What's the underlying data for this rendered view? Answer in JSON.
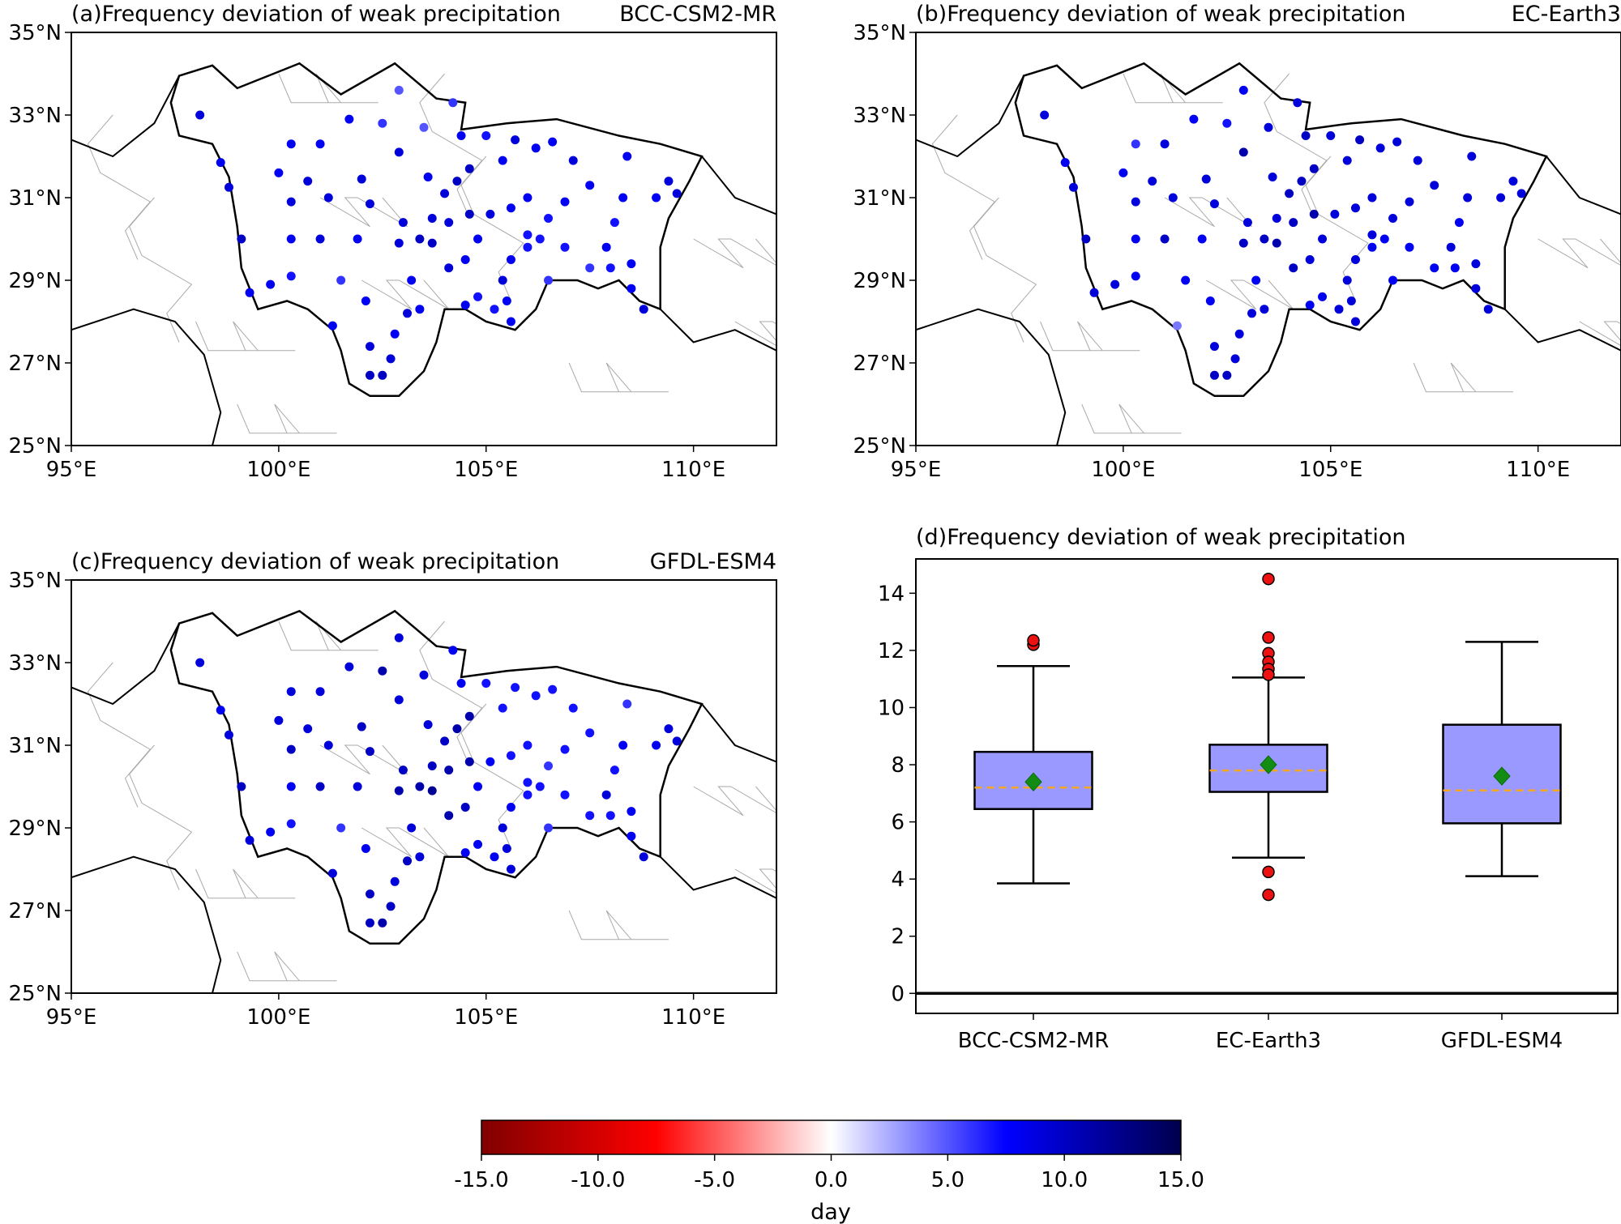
{
  "panels": [
    {
      "title": "(a)Frequency deviation of weak precipitation",
      "model": "BCC-CSM2-MR",
      "values_key": 0
    },
    {
      "title": "(b)Frequency deviation of weak precipitation",
      "model": "EC-Earth3",
      "values_key": 1
    },
    {
      "title": "(c)Frequency deviation of weak precipitation",
      "model": "GFDL-ESM4",
      "values_key": 2
    }
  ],
  "map_axes": {
    "lon_range": [
      95,
      112
    ],
    "lat_range": [
      25,
      35
    ],
    "lon_ticks": [
      95,
      100,
      105,
      110
    ],
    "lon_labels": [
      "95°E",
      "100°E",
      "105°E",
      "110°E"
    ],
    "lat_ticks": [
      25,
      27,
      29,
      31,
      33,
      35
    ],
    "lat_labels": [
      "25°N",
      "27°N",
      "29°N",
      "31°N",
      "33°N",
      "35°N"
    ]
  },
  "region_outline": [
    [
      97.6,
      33.95
    ],
    [
      98.4,
      34.2
    ],
    [
      99.0,
      33.65
    ],
    [
      100.5,
      34.25
    ],
    [
      101.5,
      33.5
    ],
    [
      102.8,
      34.25
    ],
    [
      103.8,
      33.4
    ],
    [
      104.5,
      33.3
    ],
    [
      104.4,
      32.65
    ],
    [
      105.5,
      32.8
    ],
    [
      106.7,
      32.9
    ],
    [
      108.2,
      32.5
    ],
    [
      109.2,
      32.3
    ],
    [
      110.2,
      32.0
    ],
    [
      109.9,
      31.4
    ],
    [
      109.4,
      30.5
    ],
    [
      109.2,
      29.8
    ],
    [
      109.2,
      28.3
    ],
    [
      108.7,
      28.5
    ],
    [
      108.2,
      29.0
    ],
    [
      107.7,
      28.8
    ],
    [
      107.2,
      29.0
    ],
    [
      106.5,
      29.0
    ],
    [
      106.2,
      28.3
    ],
    [
      105.7,
      27.8
    ],
    [
      105.0,
      28.0
    ],
    [
      104.5,
      28.3
    ],
    [
      104.0,
      28.3
    ],
    [
      103.8,
      27.5
    ],
    [
      103.5,
      26.8
    ],
    [
      102.9,
      26.2
    ],
    [
      102.2,
      26.2
    ],
    [
      101.7,
      26.5
    ],
    [
      101.5,
      27.3
    ],
    [
      101.3,
      27.8
    ],
    [
      100.7,
      28.3
    ],
    [
      100.2,
      28.5
    ],
    [
      99.5,
      28.3
    ],
    [
      99.1,
      29.3
    ],
    [
      99.0,
      30.3
    ],
    [
      98.8,
      31.5
    ],
    [
      98.4,
      32.3
    ],
    [
      97.6,
      32.5
    ],
    [
      97.4,
      33.3
    ]
  ],
  "stations": [
    [
      98.1,
      33.0
    ],
    [
      98.6,
      31.85
    ],
    [
      98.8,
      31.25
    ],
    [
      99.1,
      30.0
    ],
    [
      99.3,
      28.7
    ],
    [
      99.8,
      28.9
    ],
    [
      100.0,
      31.6
    ],
    [
      100.3,
      32.3
    ],
    [
      100.3,
      30.9
    ],
    [
      100.3,
      30.0
    ],
    [
      100.3,
      29.1
    ],
    [
      100.7,
      31.4
    ],
    [
      101.0,
      32.3
    ],
    [
      101.2,
      31.0
    ],
    [
      101.0,
      30.0
    ],
    [
      101.5,
      29.0
    ],
    [
      101.3,
      27.9
    ],
    [
      101.7,
      32.9
    ],
    [
      102.0,
      31.45
    ],
    [
      101.9,
      30.0
    ],
    [
      102.2,
      30.85
    ],
    [
      102.5,
      32.8
    ],
    [
      102.9,
      33.6
    ],
    [
      102.9,
      32.1
    ],
    [
      103.5,
      32.7
    ],
    [
      104.2,
      33.3
    ],
    [
      102.1,
      28.5
    ],
    [
      102.2,
      27.4
    ],
    [
      102.2,
      26.7
    ],
    [
      102.5,
      26.7
    ],
    [
      102.7,
      27.1
    ],
    [
      102.8,
      27.7
    ],
    [
      103.1,
      28.2
    ],
    [
      103.4,
      28.3
    ],
    [
      103.2,
      29.0
    ],
    [
      102.9,
      29.9
    ],
    [
      103.0,
      30.4
    ],
    [
      103.4,
      30.0
    ],
    [
      103.7,
      30.5
    ],
    [
      104.0,
      31.1
    ],
    [
      103.6,
      31.5
    ],
    [
      104.3,
      31.4
    ],
    [
      104.6,
      31.7
    ],
    [
      104.4,
      32.5
    ],
    [
      105.0,
      32.5
    ],
    [
      105.4,
      31.9
    ],
    [
      105.7,
      32.4
    ],
    [
      106.2,
      32.2
    ],
    [
      106.6,
      32.35
    ],
    [
      107.1,
      31.9
    ],
    [
      107.5,
      31.3
    ],
    [
      108.3,
      31.0
    ],
    [
      108.4,
      32.0
    ],
    [
      109.4,
      31.4
    ],
    [
      109.6,
      31.1
    ],
    [
      109.1,
      31.0
    ],
    [
      108.1,
      30.4
    ],
    [
      107.9,
      29.8
    ],
    [
      107.5,
      29.3
    ],
    [
      108.0,
      29.3
    ],
    [
      108.5,
      29.4
    ],
    [
      108.5,
      28.8
    ],
    [
      108.8,
      28.3
    ],
    [
      106.9,
      29.8
    ],
    [
      106.5,
      29.0
    ],
    [
      106.0,
      29.8
    ],
    [
      105.6,
      29.5
    ],
    [
      105.4,
      29.0
    ],
    [
      105.5,
      28.5
    ],
    [
      105.2,
      28.3
    ],
    [
      104.8,
      28.6
    ],
    [
      104.5,
      28.4
    ],
    [
      104.1,
      29.3
    ],
    [
      104.5,
      29.5
    ],
    [
      104.8,
      30.0
    ],
    [
      105.1,
      30.6
    ],
    [
      105.6,
      30.75
    ],
    [
      106.0,
      31.0
    ],
    [
      106.5,
      30.5
    ],
    [
      106.9,
      30.9
    ],
    [
      104.6,
      30.6
    ],
    [
      104.1,
      30.4
    ],
    [
      103.7,
      29.9
    ],
    [
      105.6,
      28.0
    ],
    [
      106.0,
      30.1
    ],
    [
      106.3,
      30.0
    ]
  ],
  "station_values": [
    [
      9,
      8,
      9,
      10,
      8,
      8,
      8,
      8,
      9,
      8,
      7,
      9,
      8,
      9,
      9,
      6,
      8,
      8,
      9,
      8,
      9,
      6,
      5,
      9,
      5,
      6,
      8,
      9,
      10,
      10,
      9,
      8,
      9,
      8,
      8,
      9,
      9,
      10,
      9,
      9,
      8,
      10,
      10,
      8,
      7,
      8,
      9,
      8,
      8,
      9,
      8,
      8,
      8,
      9,
      9,
      8,
      7,
      8,
      6,
      7,
      8,
      8,
      9,
      7,
      6,
      7,
      8,
      9,
      8,
      7,
      7,
      8,
      9,
      8,
      8,
      9,
      8,
      8,
      7,
      8,
      10,
      9,
      10,
      8,
      7,
      7
    ],
    [
      9,
      8,
      9,
      10,
      9,
      9,
      8,
      6,
      9,
      8,
      8,
      9,
      9,
      9,
      10,
      8,
      4,
      8,
      9,
      8,
      9,
      7,
      8,
      11,
      9,
      9,
      8,
      9,
      10,
      10,
      9,
      9,
      9,
      9,
      8,
      10,
      9,
      10,
      9,
      10,
      9,
      10,
      10,
      10,
      9,
      9,
      10,
      9,
      9,
      9,
      9,
      9,
      9,
      9,
      9,
      9,
      8,
      9,
      8,
      8,
      9,
      9,
      9,
      8,
      8,
      8,
      9,
      9,
      9,
      9,
      8,
      8,
      10,
      9,
      9,
      9,
      9,
      9,
      9,
      9,
      11,
      10,
      11,
      9,
      9,
      8
    ],
    [
      9,
      8,
      9,
      10,
      9,
      8,
      9,
      9,
      10,
      8,
      7,
      9,
      9,
      9,
      10,
      6,
      9,
      9,
      10,
      9,
      10,
      11,
      9,
      9,
      9,
      8,
      8,
      10,
      10,
      11,
      10,
      9,
      10,
      9,
      9,
      11,
      10,
      11,
      10,
      10,
      9,
      11,
      11,
      8,
      7,
      7,
      7,
      7,
      7,
      7,
      7,
      8,
      6,
      9,
      9,
      8,
      7,
      9,
      7,
      7,
      8,
      8,
      9,
      7,
      6,
      7,
      8,
      9,
      9,
      8,
      8,
      8,
      11,
      10,
      8,
      8,
      7,
      7,
      6,
      7,
      11,
      11,
      12,
      9,
      7,
      7
    ]
  ],
  "colorbar": {
    "range": [
      -15,
      15
    ],
    "ticks": [
      -15,
      -10,
      -5,
      0,
      5,
      10,
      15
    ],
    "tick_labels": [
      "-15.0",
      "-10.0",
      "-5.0",
      "0.0",
      "5.0",
      "10.0",
      "15.0"
    ],
    "label": "day",
    "colormap": "seismic_r"
  },
  "chart_data": {
    "type": "box",
    "title": "(d)Frequency deviation of weak precipitation",
    "categories": [
      "BCC-CSM2-MR",
      "EC-Earth3",
      "GFDL-ESM4"
    ],
    "ylim": [
      -0.7,
      15.2
    ],
    "yticks": [
      0,
      2,
      4,
      6,
      8,
      10,
      12,
      14
    ],
    "ytick_labels": [
      "0",
      "2",
      "4",
      "6",
      "8",
      "10",
      "12",
      "14"
    ],
    "reference_line": 0,
    "series": [
      {
        "name": "BCC-CSM2-MR",
        "whisker_low": 3.85,
        "q1": 6.45,
        "median": 7.2,
        "mean": 7.4,
        "q3": 8.45,
        "whisker_high": 11.45,
        "outliers": [
          12.2,
          12.35
        ]
      },
      {
        "name": "EC-Earth3",
        "whisker_low": 4.75,
        "q1": 7.05,
        "median": 7.8,
        "mean": 8.0,
        "q3": 8.7,
        "whisker_high": 11.05,
        "outliers": [
          14.5,
          12.45,
          11.9,
          11.6,
          11.35,
          11.15,
          4.25,
          3.45
        ]
      },
      {
        "name": "GFDL-ESM4",
        "whisker_low": 4.1,
        "q1": 5.95,
        "median": 7.1,
        "mean": 7.6,
        "q3": 9.4,
        "whisker_high": 12.3,
        "outliers": []
      }
    ],
    "colors": {
      "box": "#9999ff",
      "median": "#f5a623",
      "mean": "#128c12",
      "outlier": "#ee1111"
    }
  }
}
